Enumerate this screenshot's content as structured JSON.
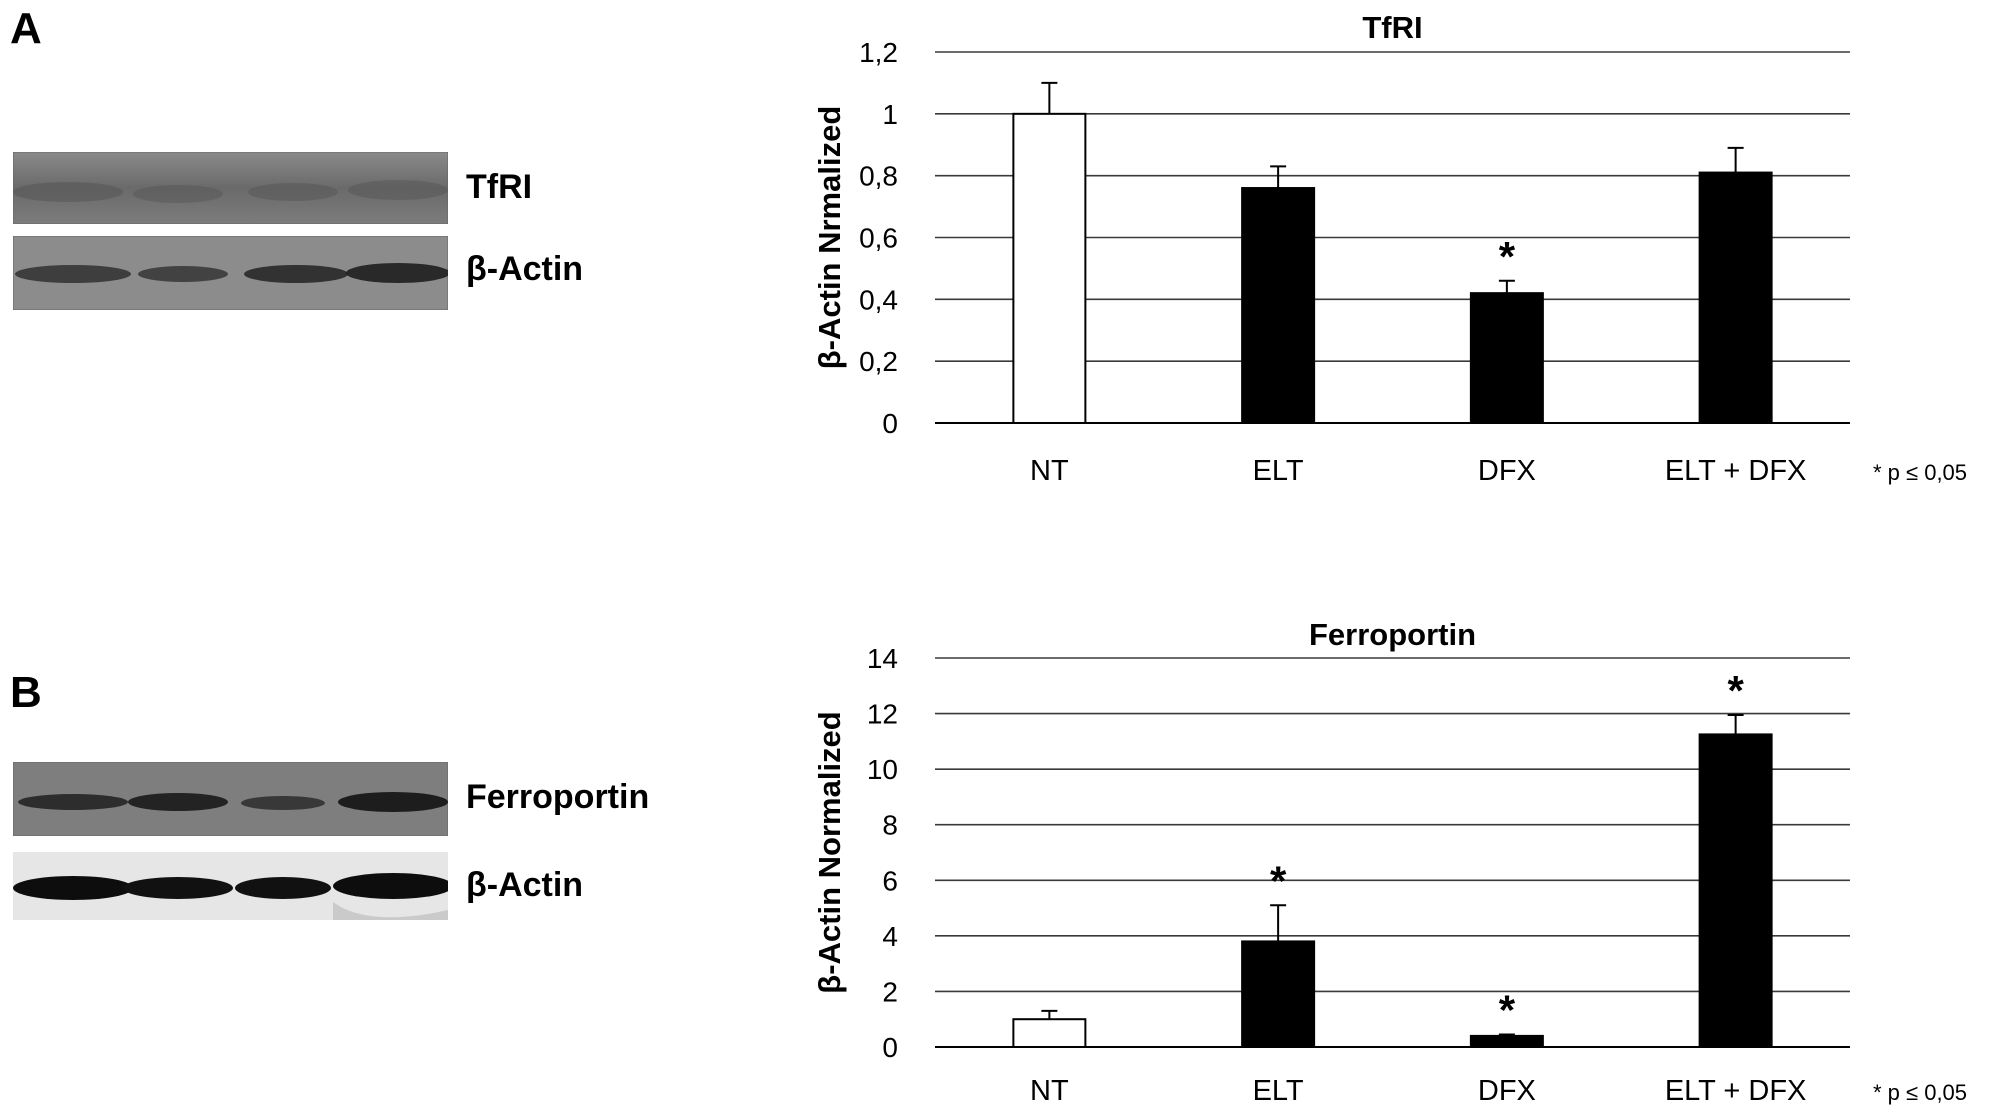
{
  "panels": [
    {
      "letter": "A",
      "blots": [
        {
          "label": "TfRI"
        },
        {
          "label": "β-Actin"
        }
      ]
    },
    {
      "letter": "B",
      "blots": [
        {
          "label": "Ferroportin"
        },
        {
          "label": "β-Actin"
        }
      ]
    }
  ],
  "colors": {
    "control_bar": "#ffffff",
    "treated_bar": "#000000",
    "grid": "#3a3a3a"
  },
  "chart_data": [
    {
      "type": "bar",
      "title": "TfRI",
      "ylabel": "β-Actin Nrmalized",
      "xlabel": "",
      "categories": [
        "NT",
        "ELT",
        "DFX",
        "ELT + DFX"
      ],
      "values": [
        1.0,
        0.76,
        0.42,
        0.81
      ],
      "errors": [
        0.1,
        0.07,
        0.04,
        0.08
      ],
      "significant": [
        false,
        false,
        true,
        false
      ],
      "significance_mark": "*",
      "footnote": "* p ≤ 0,05",
      "ylim": [
        0,
        1.2
      ],
      "yticks": [
        0,
        0.2,
        0.4,
        0.6,
        0.8,
        1,
        1.2
      ],
      "ytick_labels": [
        "0",
        "0,2",
        "0,4",
        "0,6",
        "0,8",
        "1",
        "1,2"
      ],
      "grid": true
    },
    {
      "type": "bar",
      "title": "Ferroportin",
      "ylabel": "β-Actin Normalized",
      "xlabel": "",
      "categories": [
        "NT",
        "ELT",
        "DFX",
        "ELT + DFX"
      ],
      "values": [
        1.0,
        3.8,
        0.4,
        11.25
      ],
      "errors": [
        0.3,
        1.3,
        0.05,
        0.7
      ],
      "significant": [
        false,
        true,
        true,
        true
      ],
      "significance_mark": "*",
      "footnote": "* p ≤ 0,05",
      "ylim": [
        0,
        14
      ],
      "yticks": [
        0,
        2,
        4,
        6,
        8,
        10,
        12,
        14
      ],
      "ytick_labels": [
        "0",
        "2",
        "4",
        "6",
        "8",
        "10",
        "12",
        "14"
      ],
      "grid": true
    }
  ]
}
